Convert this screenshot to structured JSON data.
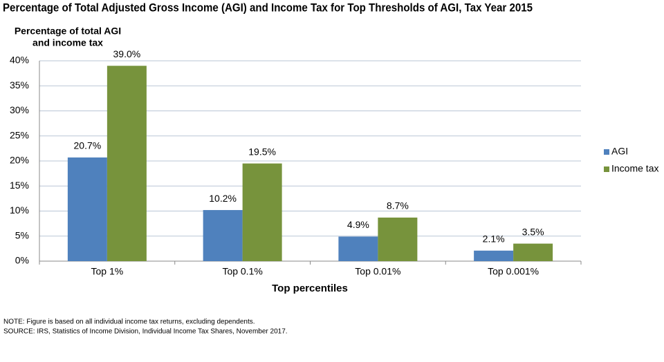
{
  "chart_data": {
    "type": "bar",
    "title": "Percentage of Total Adjusted Gross Income (AGI) and Income Tax for Top Thresholds of AGI, Tax Year 2015",
    "ylabel": [
      "Percentage of total AGI",
      "and income tax"
    ],
    "xlabel": "Top percentiles",
    "categories": [
      "Top 1%",
      "Top 0.1%",
      "Top 0.01%",
      "Top 0.001%"
    ],
    "series": [
      {
        "name": "AGI",
        "color": "#4f81bd",
        "values": [
          20.7,
          10.2,
          4.9,
          2.1
        ],
        "value_labels": [
          "20.7%",
          "10.2%",
          "4.9%",
          "2.1%"
        ]
      },
      {
        "name": "Income tax",
        "color": "#77933c",
        "values": [
          39.0,
          19.5,
          8.7,
          3.5
        ],
        "value_labels": [
          "39.0%",
          "19.5%",
          "8.7%",
          "3.5%"
        ]
      }
    ],
    "ylim": [
      0,
      40
    ],
    "yticks": [
      {
        "value": 0,
        "label": "0%"
      },
      {
        "value": 5,
        "label": "5%"
      },
      {
        "value": 10,
        "label": "10%"
      },
      {
        "value": 15,
        "label": "15%"
      },
      {
        "value": 20,
        "label": "20%"
      },
      {
        "value": 25,
        "label": "25%"
      },
      {
        "value": 30,
        "label": "30%"
      },
      {
        "value": 35,
        "label": "35%"
      },
      {
        "value": 40,
        "label": "40%"
      }
    ],
    "grid": true,
    "legend": "right",
    "notes": [
      "NOTE: Figure is based on all individual income tax returns, excluding dependents.",
      "SOURCE: IRS, Statistics of Income Division, Individual Income Tax Shares, November 2017."
    ]
  }
}
